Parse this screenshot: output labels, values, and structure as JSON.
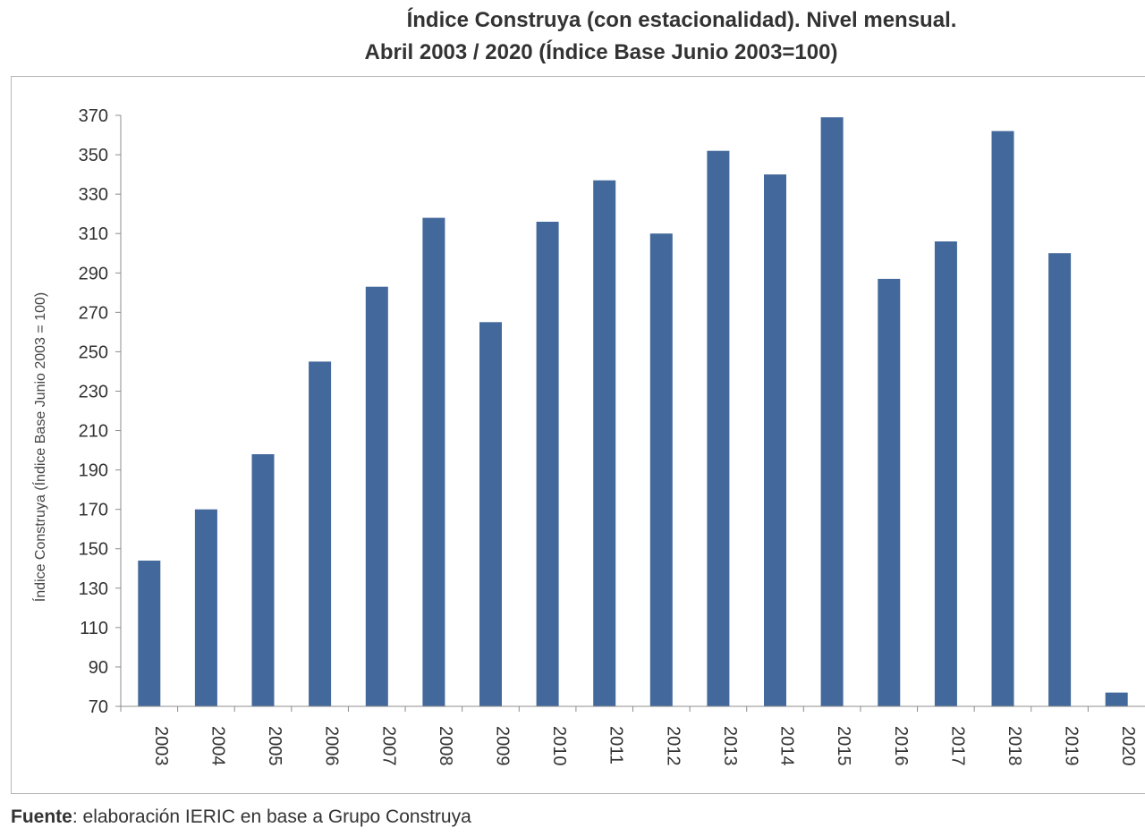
{
  "chart_data": {
    "type": "bar",
    "title": "Índice Construya (con estacionalidad). Nivel mensual.",
    "subtitle": "Abril 2003 / 2020 (Índice Base Junio 2003=100)",
    "xlabel": "",
    "ylabel": "Índice Construya (Índice Base Junio 2003 = 100)",
    "categories": [
      "2003",
      "2004",
      "2005",
      "2006",
      "2007",
      "2008",
      "2009",
      "2010",
      "2011",
      "2012",
      "2013",
      "2014",
      "2015",
      "2016",
      "2017",
      "2018",
      "2019",
      "2020"
    ],
    "values": [
      144,
      170,
      198,
      245,
      283,
      318,
      265,
      316,
      337,
      310,
      352,
      340,
      369,
      287,
      306,
      362,
      300,
      77
    ],
    "ylim": [
      70,
      370
    ],
    "yticks": [
      "70",
      "90",
      "110",
      "130",
      "150",
      "170",
      "190",
      "210",
      "230",
      "250",
      "270",
      "290",
      "310",
      "330",
      "350",
      "370"
    ],
    "grid": false,
    "bar_color": "#43689B"
  },
  "source": {
    "label": "Fuente",
    "text": ": elaboración IERIC en base a Grupo Construya"
  }
}
